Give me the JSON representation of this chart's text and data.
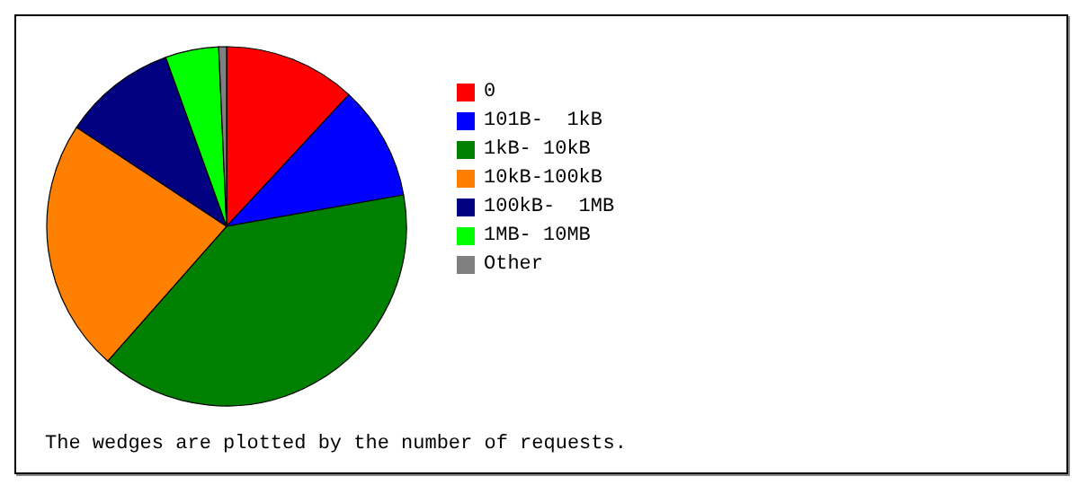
{
  "chart_data": {
    "type": "pie",
    "categories": [
      "0",
      "101B-  1kB",
      "1kB- 10kB",
      "10kB-100kB",
      "100kB-  1MB",
      "1MB- 10MB",
      "Other"
    ],
    "values": [
      11.9,
      10.3,
      39.3,
      22.8,
      10.2,
      4.8,
      0.7
    ],
    "colors": [
      "#ff0000",
      "#0000ff",
      "#008000",
      "#ff8000",
      "#000080",
      "#00ff00",
      "#808080"
    ],
    "legend": "right",
    "annotations": [
      "The wedges are plotted by the number of requests."
    ]
  }
}
